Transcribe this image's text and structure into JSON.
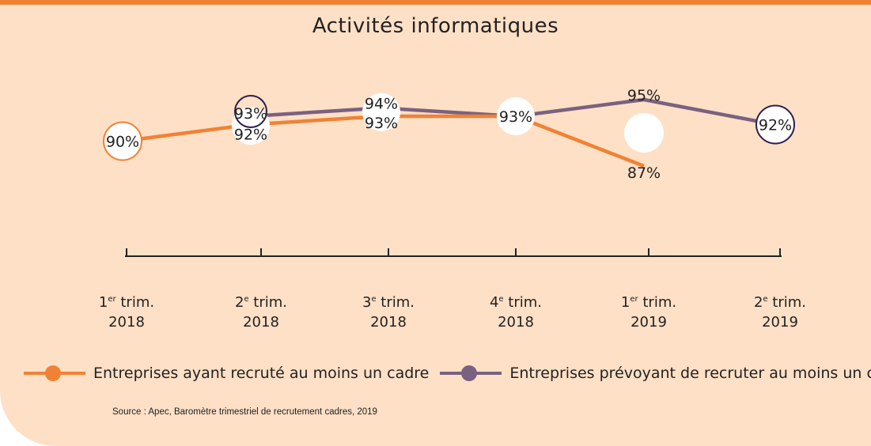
{
  "source": "Source : Apec, Baromètre trimestriel de recrutement cadres, 2019",
  "colors": {
    "orange": "#f08235",
    "purple": "#7b6180",
    "purple_ring": "#2e1f4d",
    "background": "#fde0c6"
  },
  "chart_data": {
    "type": "line",
    "title": "Activités informatiques",
    "categories": [
      {
        "num": "1",
        "sup": "er",
        "trim": "trim.",
        "year": "2018"
      },
      {
        "num": "2",
        "sup": "e",
        "trim": "trim.",
        "year": "2018"
      },
      {
        "num": "3",
        "sup": "e",
        "trim": "trim.",
        "year": "2018"
      },
      {
        "num": "4",
        "sup": "e",
        "trim": "trim.",
        "year": "2018"
      },
      {
        "num": "1",
        "sup": "er",
        "trim": "trim.",
        "year": "2019"
      },
      {
        "num": "2",
        "sup": "e",
        "trim": "trim.",
        "year": "2019"
      }
    ],
    "unit": "%",
    "ylim": [
      85,
      97
    ],
    "series": [
      {
        "name": "Entreprises ayant recruté au moins un cadre",
        "color": "#f08235",
        "values": [
          90,
          92,
          93,
          93,
          87,
          null
        ]
      },
      {
        "name": "Entreprises prévoyant de recruter au moins un cadre",
        "color": "#7b6180",
        "values": [
          null,
          93,
          94,
          93,
          95,
          92
        ]
      }
    ]
  }
}
